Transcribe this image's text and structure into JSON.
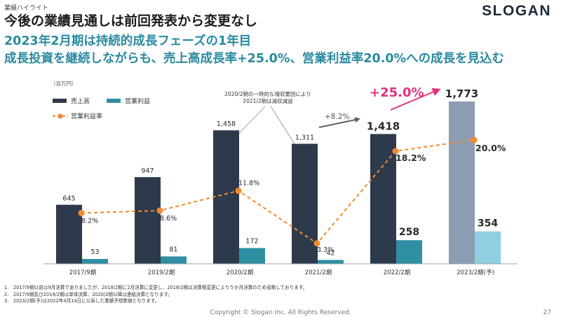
{
  "header": {
    "section": "業績ハイライト",
    "logo": "SLOGAN",
    "title": "今後の業績見通しは前回発表から変更なし",
    "subtitle_1": "2023年2月期は持続的成長フェーズの1年目",
    "subtitle_2": "成長投資を継続しながらも、売上高成長率+25.0%、営業利益率20.0%への成長を見込む"
  },
  "chart_data": {
    "type": "bar",
    "unit_label": "（百万円）",
    "categories": [
      "2017/9期",
      "2019/2期",
      "2020/2期",
      "2021/2期",
      "2022/2期",
      "2023/2期(予)"
    ],
    "series": [
      {
        "name": "売上高",
        "values": [
          645,
          947,
          1458,
          1311,
          1418,
          1773
        ],
        "labels": [
          "645",
          "947",
          "1,458",
          "1,311",
          "1,418",
          "1,773"
        ]
      },
      {
        "name": "営業利益",
        "values": [
          53,
          81,
          172,
          42,
          258,
          354
        ],
        "labels": [
          "53",
          "81",
          "172",
          "42",
          "258",
          "354"
        ]
      },
      {
        "name": "営業利益率",
        "type": "line",
        "values": [
          8.2,
          8.6,
          11.8,
          3.3,
          18.2,
          20.0
        ],
        "labels": [
          "8.2%",
          "8.6%",
          "11.8%",
          "3.3%",
          "18.2%",
          "20.0%"
        ]
      }
    ],
    "forecast_index": 5,
    "ylim_bars": [
      0,
      1900
    ],
    "ylim_line": [
      0,
      33
    ],
    "legend_position": "top-left",
    "annotations": {
      "callout_line1": "2020/2期の一時的な増収要因により",
      "callout_line2": "2021/2期は減収減益",
      "growth_small": "+8.2%",
      "growth_big": "+25.0%"
    },
    "colors": {
      "sales": "#2d3a4c",
      "sales_forecast": "#8c9db3",
      "profit": "#2f8fa3",
      "profit_forecast": "#8fcfe0",
      "margin": "#f08a2d",
      "big_arrow": "#e0327a",
      "small_arrow": "#5a6270"
    }
  },
  "notes": [
    "1.　2017/9期以前は9月決算でありましたが、2018/2期に2月決算に変更し、2018/2期は決算期変更により５か月決算のため省略しております。",
    "2.　2017/9期及び2019/2期は単体決算、2020/2期以降は連結決算となります。",
    "3.　2023/2期(予)は2022年4月14日に公表した業績予想数値となります。"
  ],
  "footer": {
    "copyright": "Copyright © Slogan Inc. All Rights Reserved.",
    "page": "27"
  }
}
